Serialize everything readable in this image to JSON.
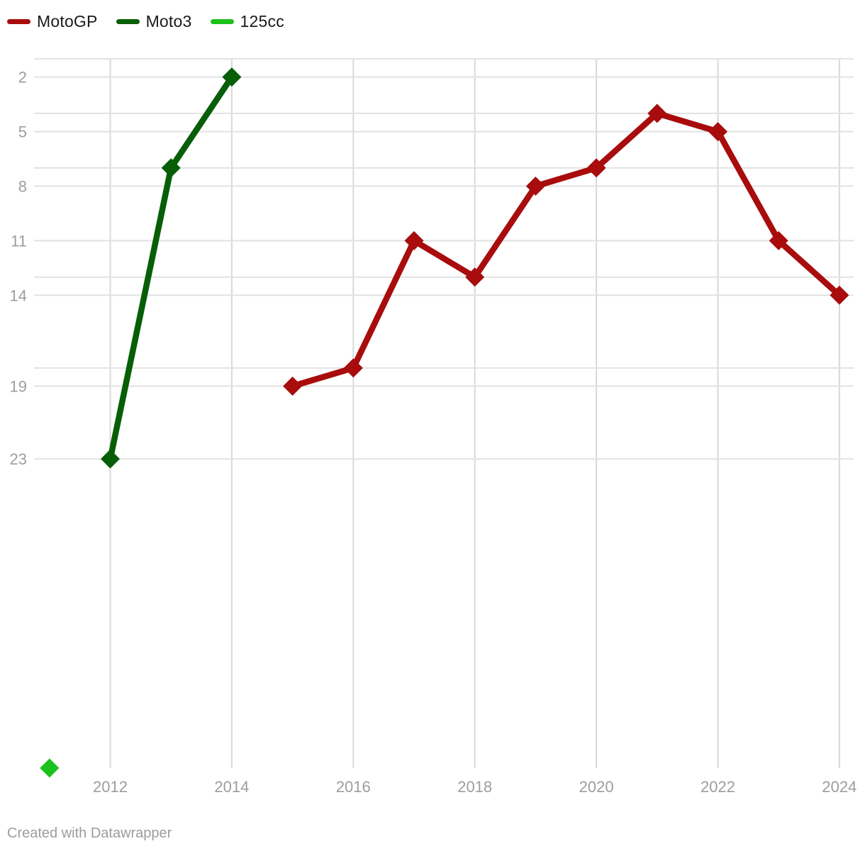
{
  "legend": {
    "items": [
      {
        "label": "MotoGP",
        "color": "#a80c0c"
      },
      {
        "label": "Moto3",
        "color": "#075e07"
      },
      {
        "label": "125cc",
        "color": "#1cc11c"
      }
    ]
  },
  "footer": {
    "text": "Created with Datawrapper"
  },
  "colors": {
    "background": "#ffffff",
    "horizontal_gridline": "#e2e2e2",
    "vertical_gridline": "#d9d9d9",
    "axis_text": "#9d9d9d",
    "legend_text": "#1a1a1a",
    "footer_text": "#9c9c9c"
  },
  "chart_data": {
    "type": "line",
    "title": "",
    "xlabel": "",
    "ylabel": "",
    "legend_position": "top-left",
    "grid": true,
    "marker": "diamond",
    "x_axis": {
      "tick_labels": [
        "2012",
        "2014",
        "2016",
        "2018",
        "2020",
        "2022",
        "2024"
      ],
      "ticks": [
        2012,
        2014,
        2016,
        2018,
        2020,
        2022,
        2024
      ],
      "range": [
        2011,
        2024.25
      ]
    },
    "y_axis": {
      "labeled_ticks": [
        2,
        5,
        8,
        11,
        14,
        19,
        23
      ],
      "gridline_values": [
        1,
        2,
        4,
        5,
        7,
        8,
        11,
        13,
        14,
        18,
        19,
        23
      ],
      "range": [
        1,
        40
      ],
      "inverted": true
    },
    "series": [
      {
        "name": "MotoGP",
        "color": "#a80c0c",
        "points": [
          [
            2015,
            19
          ],
          [
            2016,
            18
          ],
          [
            2017,
            11
          ],
          [
            2018,
            13
          ],
          [
            2019,
            8
          ],
          [
            2020,
            7
          ],
          [
            2021,
            4
          ],
          [
            2022,
            5
          ],
          [
            2023,
            11
          ],
          [
            2024,
            14
          ]
        ]
      },
      {
        "name": "Moto3",
        "color": "#075e07",
        "points": [
          [
            2012,
            23
          ],
          [
            2013,
            7
          ],
          [
            2014,
            2
          ]
        ]
      },
      {
        "name": "125cc",
        "color": "#1cc11c",
        "points": [
          [
            2011,
            40
          ]
        ]
      }
    ]
  }
}
